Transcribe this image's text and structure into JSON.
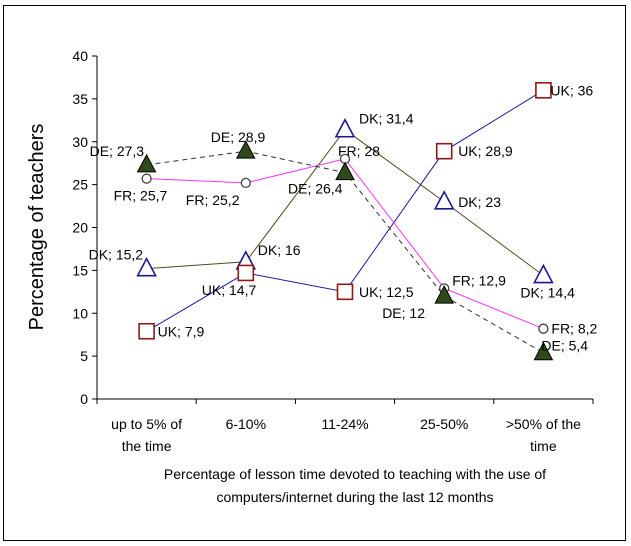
{
  "chart_data": {
    "type": "line",
    "title": "",
    "xlabel_lines": [
      "Percentage of lesson time devoted to teaching with the use of",
      "computers/internet during the last 12 months"
    ],
    "ylabel": "Percentage of teachers",
    "ylim": [
      0,
      40
    ],
    "yticks": [
      0,
      5,
      10,
      15,
      20,
      25,
      30,
      35,
      40
    ],
    "grid": false,
    "categories": [
      [
        "up to 5% of",
        "the time"
      ],
      [
        "6-10%"
      ],
      [
        "11-24%"
      ],
      [
        "25-50%"
      ],
      [
        ">50% of the",
        "time"
      ]
    ],
    "series": [
      {
        "name": "DK",
        "values": [
          15.2,
          16,
          31.4,
          23,
          14.4
        ],
        "labels": [
          "DK; 15,2",
          "DK; 16",
          "DK; 31,4",
          "DK; 23",
          "DK; 14,4"
        ],
        "line_color": "#4d4d1a",
        "line_style": "solid",
        "marker": "triangle-open",
        "marker_color": "#1a1a8c"
      },
      {
        "name": "UK",
        "values": [
          7.9,
          14.7,
          12.5,
          28.9,
          36
        ],
        "labels": [
          "UK; 7,9",
          "UK; 14,7",
          "UK; 12,5",
          "UK; 28,9",
          "UK; 36"
        ],
        "line_color": "#1a1aa0",
        "line_style": "solid",
        "marker": "square-open",
        "marker_color": "#8c1a1a"
      },
      {
        "name": "FR",
        "values": [
          25.7,
          25.2,
          28,
          12.9,
          8.2
        ],
        "labels": [
          "FR; 25,7",
          "FR; 25,2",
          "FR; 28",
          "FR; 12,9",
          "FR; 8,2"
        ],
        "line_color": "#ff33ff",
        "line_style": "solid",
        "marker": "circle-open",
        "marker_color": "#404040"
      },
      {
        "name": "DE",
        "values": [
          27.3,
          28.9,
          26.4,
          12,
          5.4
        ],
        "labels": [
          "DE; 27,3",
          "DE; 28,9",
          "DE; 26,4",
          "DE; 12",
          "DE; 5,4"
        ],
        "line_color": "#333333",
        "line_style": "dashed",
        "marker": "triangle-filled",
        "marker_color": "#2e4a1a"
      }
    ]
  }
}
